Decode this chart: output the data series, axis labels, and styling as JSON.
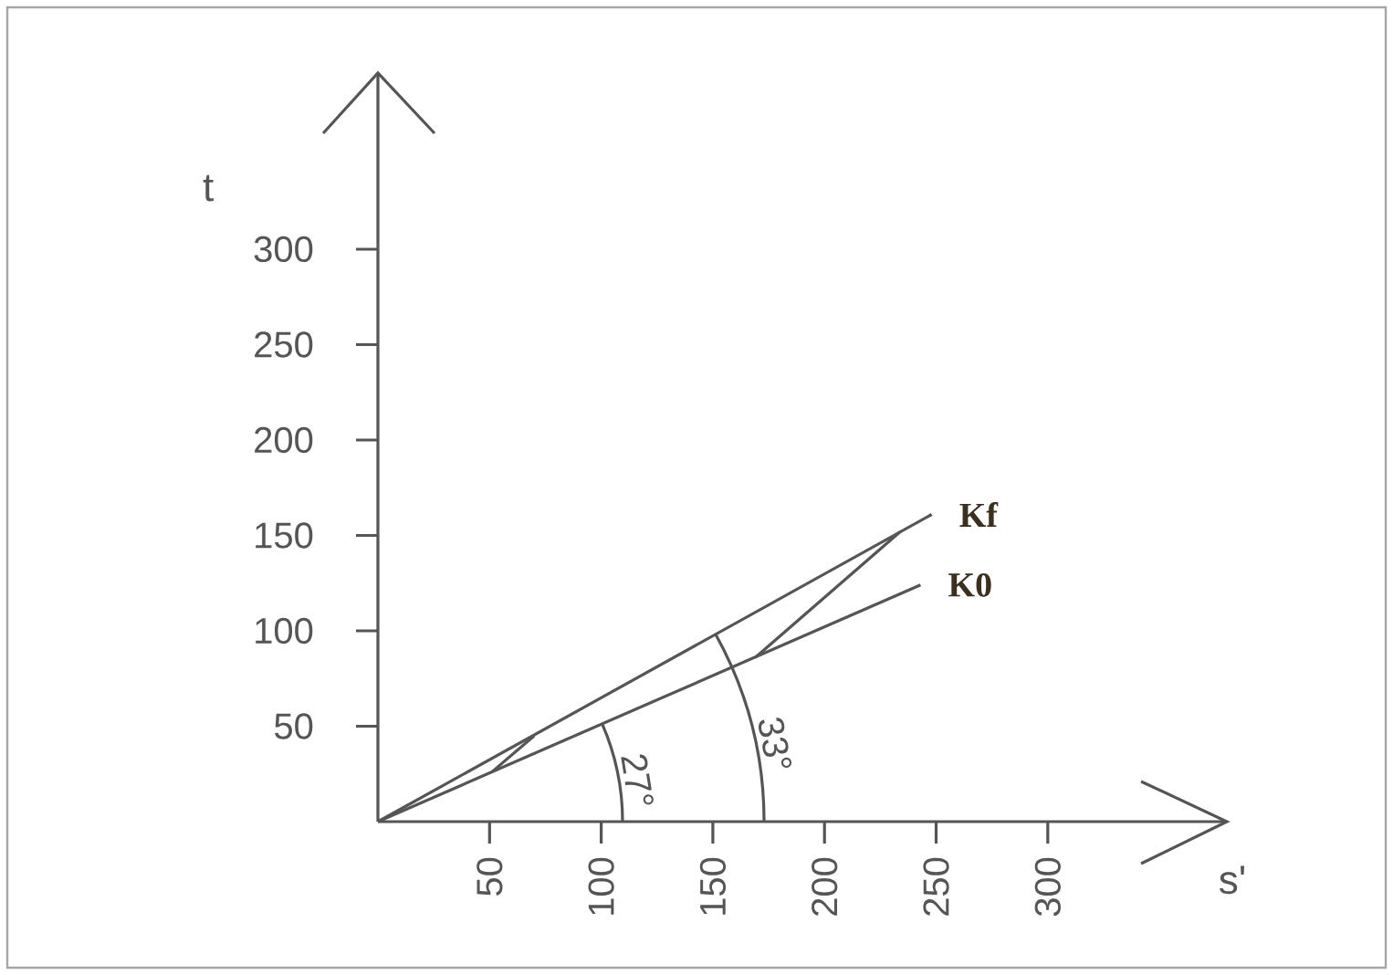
{
  "chart_data": {
    "type": "line",
    "xlabel": "s'",
    "ylabel": "t",
    "xlim": [
      0,
      380
    ],
    "ylim": [
      0,
      392
    ],
    "xticks": [
      50,
      100,
      150,
      200,
      250,
      300
    ],
    "yticks": [
      50,
      100,
      150,
      200,
      250,
      300
    ],
    "grid": false,
    "legend": false,
    "marker": "none",
    "line_style": "solid",
    "series": [
      {
        "name": "Kf",
        "color": "#555555",
        "x": [
          0,
          248
        ],
        "values": [
          0,
          161
        ]
      },
      {
        "name": "K0",
        "color": "#555555",
        "x": [
          0,
          243
        ],
        "values": [
          0,
          124
        ]
      },
      {
        "color": "#555555",
        "x": [
          51,
          70
        ],
        "values": [
          26,
          45
        ]
      },
      {
        "color": "#555555",
        "x": [
          169,
          234
        ],
        "values": [
          86,
          152
        ]
      }
    ],
    "annotations": [
      "27°",
      "33°"
    ]
  }
}
